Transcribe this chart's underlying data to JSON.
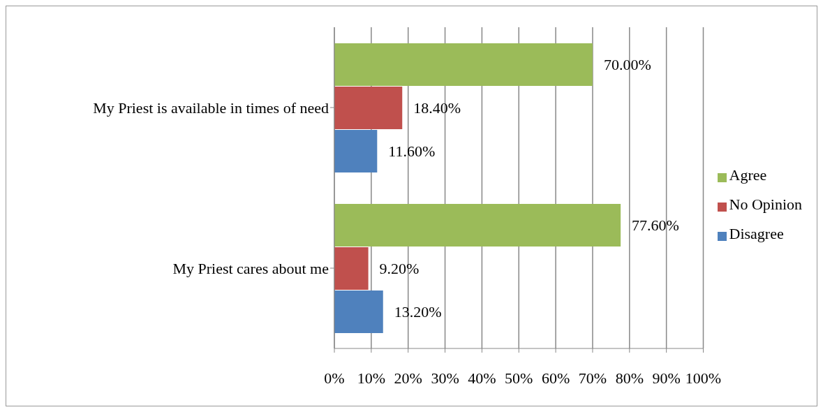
{
  "chart_data": {
    "type": "bar",
    "orientation": "horizontal",
    "categories": [
      "My Priest is available in times of need",
      "My Priest cares about me"
    ],
    "series": [
      {
        "name": "Agree",
        "color": "#9bbb59",
        "values": [
          70,
          77.6
        ],
        "value_labels": [
          "70.00%",
          "77.60%"
        ]
      },
      {
        "name": "No Opinion",
        "color": "#c0504d",
        "values": [
          18.4,
          9.2
        ],
        "value_labels": [
          "18.40%",
          "9.20%"
        ]
      },
      {
        "name": "Disagree",
        "color": "#4f81bd",
        "values": [
          11.6,
          13.2
        ],
        "value_labels": [
          "11.60%",
          "13.20%"
        ]
      }
    ],
    "xlim": [
      0,
      100
    ],
    "xticks": [
      {
        "value": 0,
        "label": "0%"
      },
      {
        "value": 10,
        "label": "10%"
      },
      {
        "value": 20,
        "label": "20%"
      },
      {
        "value": 30,
        "label": "30%"
      },
      {
        "value": 40,
        "label": "40%"
      },
      {
        "value": 50,
        "label": "50%"
      },
      {
        "value": 60,
        "label": "60%"
      },
      {
        "value": 70,
        "label": "70%"
      },
      {
        "value": 80,
        "label": "80%"
      },
      {
        "value": 90,
        "label": "90%"
      },
      {
        "value": 100,
        "label": "100%"
      }
    ],
    "grid": "x",
    "legend": "right"
  }
}
